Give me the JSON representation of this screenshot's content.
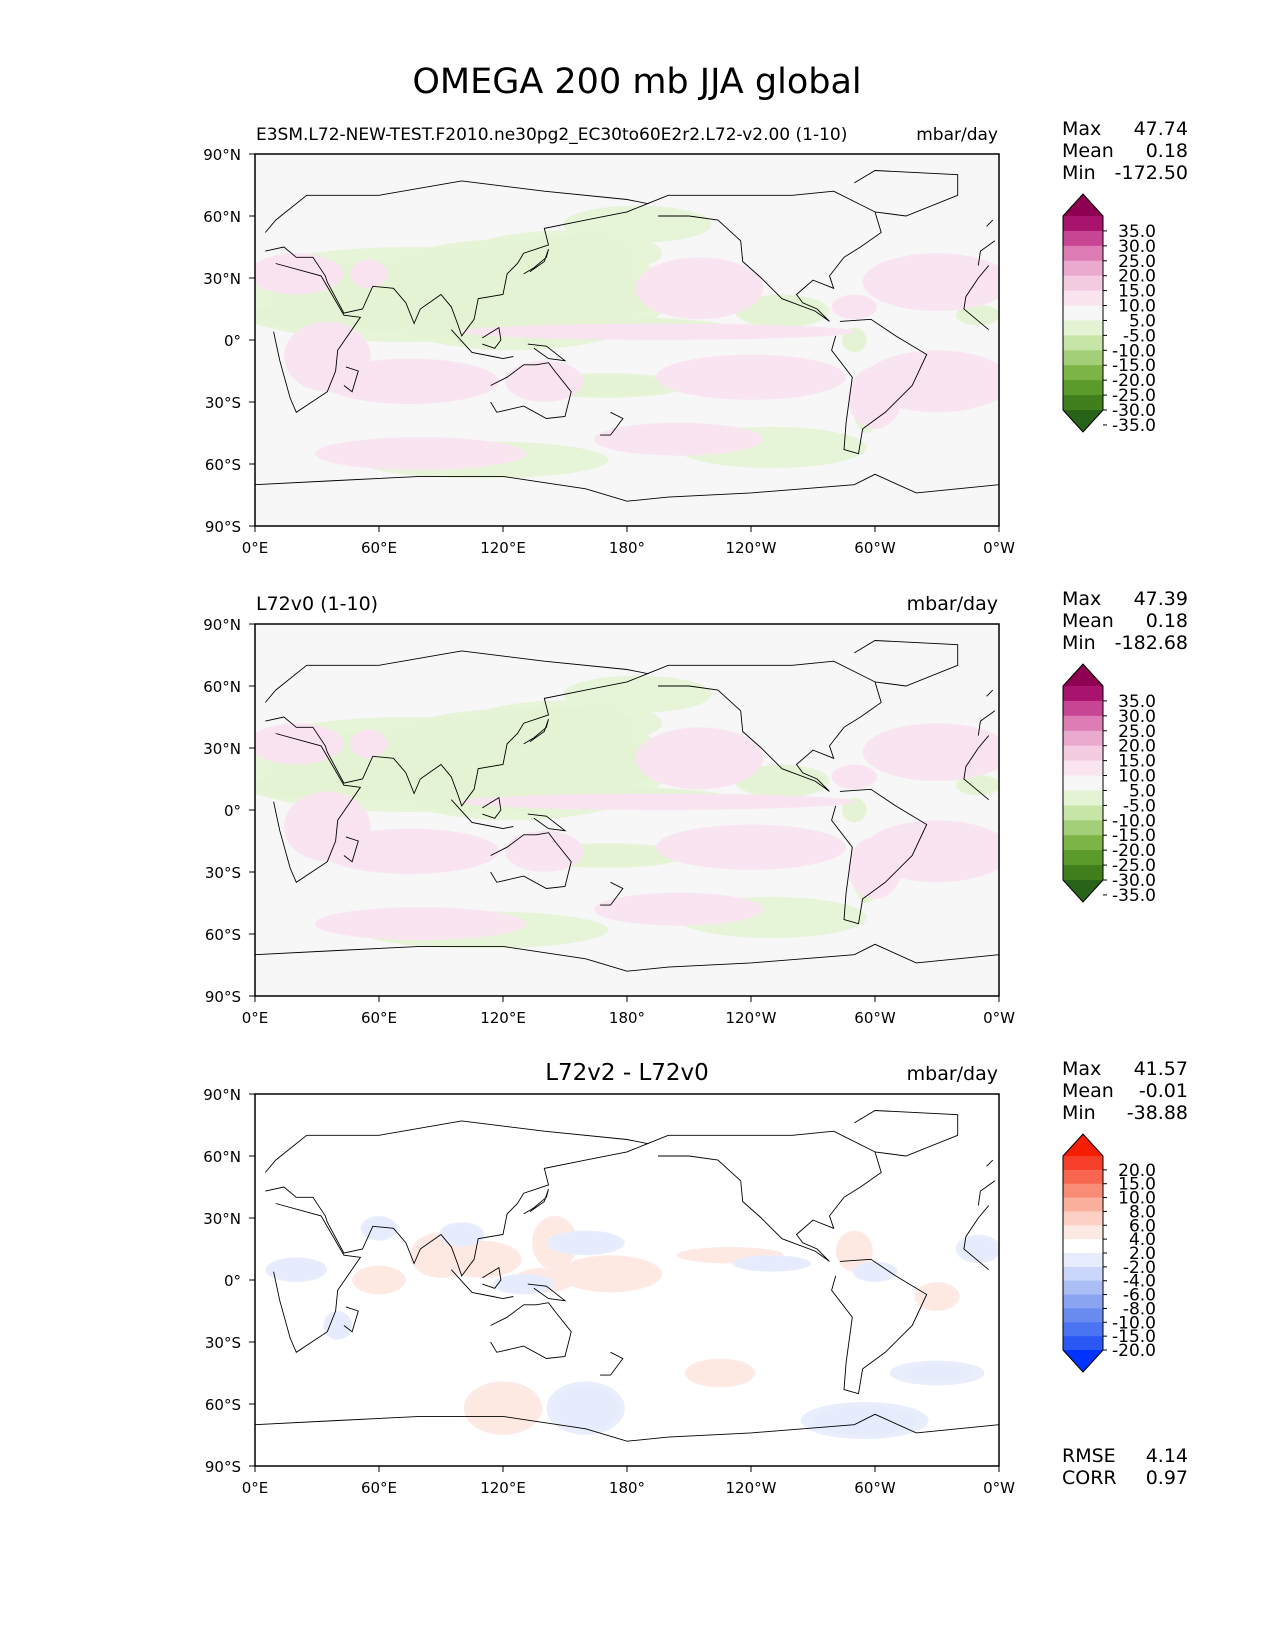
{
  "figure_title": "OMEGA 200 mb JJA global",
  "colors": {
    "test_levels": [
      "#276419",
      "#3f7f1c",
      "#5a9b2b",
      "#7cb446",
      "#a3cf78",
      "#c8e5a8",
      "#e5f3d5",
      "#f7f7f7",
      "#f9e4f0",
      "#f3cce2",
      "#eaa9cf",
      "#dd7bb4",
      "#c84594",
      "#a8136d",
      "#8e0152"
    ],
    "diff_levels": [
      "#0033ff",
      "#2a58f5",
      "#4a74f2",
      "#6a8cf0",
      "#8aa4f2",
      "#aabdf5",
      "#cad6fa",
      "#e8edfd",
      "#ffffff",
      "#fde9e4",
      "#fcd0c4",
      "#fbb09e",
      "#f98c76",
      "#f8664f",
      "#f53f2a",
      "#f51e00"
    ]
  },
  "chart_data": [
    {
      "type": "heatmap",
      "panel": "test",
      "title": "",
      "left_title": "E3SM.L72-NEW-TEST.F2010.ne30pg2_EC30to60E2r2.L72-v2.00 (1-10)",
      "units": "mbar/day",
      "stats": {
        "max_label": "Max",
        "max": "47.74",
        "mean_label": "Mean",
        "mean": "0.18",
        "min_label": "Min",
        "min": "-172.50"
      },
      "xlabel": "",
      "ylabel": "",
      "xlim": [
        0,
        360
      ],
      "ylim": [
        -90,
        90
      ],
      "xticks": [
        "0°E",
        "60°E",
        "120°E",
        "180°",
        "120°W",
        "60°W",
        "0°W"
      ],
      "yticks": [
        "90°N",
        "60°N",
        "30°N",
        "0°",
        "30°S",
        "60°S",
        "90°S"
      ],
      "colorbar_ticks": [
        "35.0",
        "30.0",
        "25.0",
        "20.0",
        "15.0",
        "10.0",
        "5.0",
        "-5.0",
        "-10.0",
        "-15.0",
        "-20.0",
        "-25.0",
        "-30.0",
        "-35.0"
      ]
    },
    {
      "type": "heatmap",
      "panel": "reference",
      "title": "",
      "left_title": "L72v0 (1-10)",
      "units": "mbar/day",
      "stats": {
        "max_label": "Max",
        "max": "47.39",
        "mean_label": "Mean",
        "mean": "0.18",
        "min_label": "Min",
        "min": "-182.68"
      },
      "xlabel": "",
      "ylabel": "",
      "xlim": [
        0,
        360
      ],
      "ylim": [
        -90,
        90
      ],
      "xticks": [
        "0°E",
        "60°E",
        "120°E",
        "180°",
        "120°W",
        "60°W",
        "0°W"
      ],
      "yticks": [
        "90°N",
        "60°N",
        "30°N",
        "0°",
        "30°S",
        "60°S",
        "90°S"
      ],
      "colorbar_ticks": [
        "35.0",
        "30.0",
        "25.0",
        "20.0",
        "15.0",
        "10.0",
        "5.0",
        "-5.0",
        "-10.0",
        "-15.0",
        "-20.0",
        "-25.0",
        "-30.0",
        "-35.0"
      ]
    },
    {
      "type": "heatmap",
      "panel": "difference",
      "title": "L72v2 - L72v0",
      "left_title": "",
      "units": "mbar/day",
      "stats": {
        "max_label": "Max",
        "max": "41.57",
        "mean_label": "Mean",
        "mean": "-0.01",
        "min_label": "Min",
        "min": "-38.88",
        "rmse_label": "RMSE",
        "rmse": "4.14",
        "corr_label": "CORR",
        "corr": "0.97"
      },
      "xlabel": "",
      "ylabel": "",
      "xlim": [
        0,
        360
      ],
      "ylim": [
        -90,
        90
      ],
      "xticks": [
        "0°E",
        "60°E",
        "120°E",
        "180°",
        "120°W",
        "60°W",
        "0°W"
      ],
      "yticks": [
        "90°N",
        "60°N",
        "30°N",
        "0°",
        "30°S",
        "60°S",
        "90°S"
      ],
      "colorbar_ticks": [
        "20.0",
        "15.0",
        "10.0",
        "8.0",
        "6.0",
        "4.0",
        "2.0",
        "-2.0",
        "-4.0",
        "-6.0",
        "-8.0",
        "-10.0",
        "-15.0",
        "-20.0"
      ]
    }
  ]
}
